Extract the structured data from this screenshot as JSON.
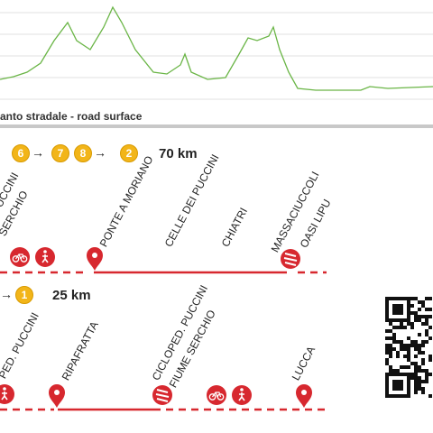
{
  "elevation_profile": {
    "x": [
      0,
      5,
      10,
      15,
      20,
      25,
      30,
      35,
      40,
      45,
      50,
      55,
      60,
      65,
      70
    ],
    "y": [
      90,
      88,
      75,
      55,
      92,
      62,
      50,
      52,
      90,
      62,
      33,
      33,
      33,
      33,
      33
    ],
    "legend": "anto stradale - road surface",
    "line_color": "#6ab546"
  },
  "route1": {
    "connectors": [
      "6",
      "7",
      "8",
      "2"
    ],
    "arrows": [
      "→",
      "→"
    ],
    "distance": "70 km",
    "places": [
      "UCCINI",
      "SERCHIO",
      "PONTE A MORIANO",
      "CELLE DEI PUCCINI",
      "CHIATRI",
      "MASSACIUCCOLI",
      "OASI LIPU"
    ]
  },
  "route2": {
    "arrow": "→",
    "connectors": [
      "1"
    ],
    "distance": "25 km",
    "places": [
      "PED. PUCCINI",
      "RIPAFRATTA",
      "CICLOPED. PUCCINI",
      "FIUME SERCHIO",
      "LUCCA"
    ]
  },
  "icons": {
    "pin": "map-pin-icon",
    "bike": "bicycle-icon",
    "walk": "pedestrian-icon",
    "zebra": "crossing-icon",
    "qr": "qr-code-icon"
  },
  "colors": {
    "route_red": "#d7282f",
    "badge_yellow": "#f2b519",
    "grid": "#d6d6d6"
  }
}
